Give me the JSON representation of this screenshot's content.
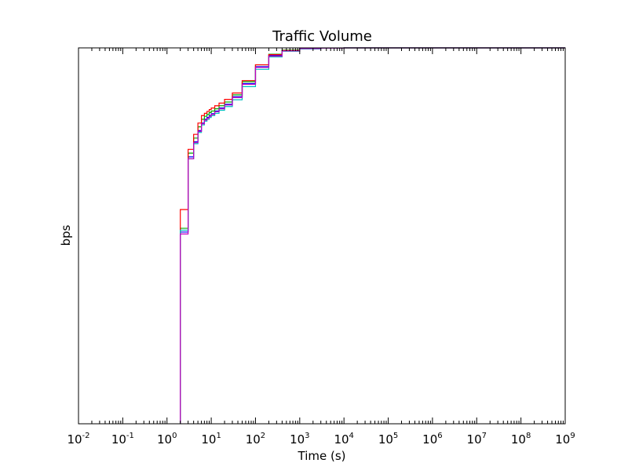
{
  "chart_data": {
    "type": "line",
    "step": true,
    "title": "Traffic Volume",
    "xlabel": "Time (s)",
    "ylabel": "bps",
    "xscale": "log",
    "xlim": [
      0.01,
      1000000000
    ],
    "ylim": [
      0,
      1
    ],
    "yticks_labeled": false,
    "grid": false,
    "legend": "none",
    "xtick_labels": [
      {
        "base": "10",
        "exp": "-2",
        "value": 0.01
      },
      {
        "base": "10",
        "exp": "-1",
        "value": 0.1
      },
      {
        "base": "10",
        "exp": "0",
        "value": 1
      },
      {
        "base": "10",
        "exp": "1",
        "value": 10
      },
      {
        "base": "10",
        "exp": "2",
        "value": 100
      },
      {
        "base": "10",
        "exp": "3",
        "value": 1000
      },
      {
        "base": "10",
        "exp": "4",
        "value": 10000
      },
      {
        "base": "10",
        "exp": "5",
        "value": 100000
      },
      {
        "base": "10",
        "exp": "6",
        "value": 1000000
      },
      {
        "base": "10",
        "exp": "7",
        "value": 10000000
      },
      {
        "base": "10",
        "exp": "8",
        "value": 100000000
      },
      {
        "base": "10",
        "exp": "9",
        "value": 1000000000
      }
    ],
    "series": [
      {
        "color": "#0000ff",
        "x": [
          2,
          3,
          4,
          5,
          6,
          7,
          8,
          9,
          10,
          12,
          15,
          20,
          30,
          50,
          100,
          200,
          400,
          1000,
          3000,
          10000
        ],
        "y": [
          0.51,
          0.71,
          0.75,
          0.78,
          0.8,
          0.81,
          0.815,
          0.82,
          0.825,
          0.832,
          0.84,
          0.85,
          0.87,
          0.905,
          0.95,
          0.98,
          0.993,
          0.998,
          0.9995,
          1.0
        ]
      },
      {
        "color": "#00aa00",
        "x": [
          2,
          3,
          4,
          5,
          6,
          7,
          8,
          9,
          10,
          12,
          15,
          20,
          30,
          50,
          100,
          200,
          400,
          1000,
          3000,
          10000
        ],
        "y": [
          0.52,
          0.72,
          0.76,
          0.79,
          0.81,
          0.818,
          0.823,
          0.828,
          0.832,
          0.838,
          0.846,
          0.856,
          0.875,
          0.91,
          0.955,
          0.983,
          0.994,
          0.998,
          0.9995,
          1.0
        ]
      },
      {
        "color": "#ff0000",
        "x": [
          2,
          3,
          4,
          5,
          6,
          7,
          8,
          9,
          10,
          12,
          15,
          20,
          30,
          50,
          100,
          200,
          400,
          1000,
          3000,
          10000
        ],
        "y": [
          0.57,
          0.73,
          0.77,
          0.8,
          0.82,
          0.826,
          0.831,
          0.836,
          0.84,
          0.846,
          0.853,
          0.863,
          0.88,
          0.913,
          0.955,
          0.982,
          0.993,
          0.998,
          0.9995,
          1.0
        ]
      },
      {
        "color": "#00bfbf",
        "x": [
          2,
          3,
          4,
          5,
          6,
          7,
          8,
          9,
          10,
          12,
          15,
          20,
          30,
          50,
          100,
          200,
          400,
          1000,
          3000,
          10000
        ],
        "y": [
          0.515,
          0.705,
          0.745,
          0.775,
          0.795,
          0.805,
          0.81,
          0.815,
          0.82,
          0.826,
          0.834,
          0.844,
          0.862,
          0.897,
          0.943,
          0.976,
          0.991,
          0.997,
          0.9995,
          1.0
        ]
      },
      {
        "color": "#bf00bf",
        "x": [
          2,
          3,
          4,
          5,
          6,
          7,
          8,
          9,
          10,
          12,
          15,
          20,
          30,
          50,
          100,
          200,
          400,
          1000,
          3000,
          10000
        ],
        "y": [
          0.505,
          0.705,
          0.748,
          0.778,
          0.798,
          0.808,
          0.813,
          0.818,
          0.823,
          0.83,
          0.838,
          0.848,
          0.868,
          0.903,
          0.948,
          0.978,
          0.992,
          0.998,
          0.9995,
          1.0
        ]
      }
    ]
  }
}
